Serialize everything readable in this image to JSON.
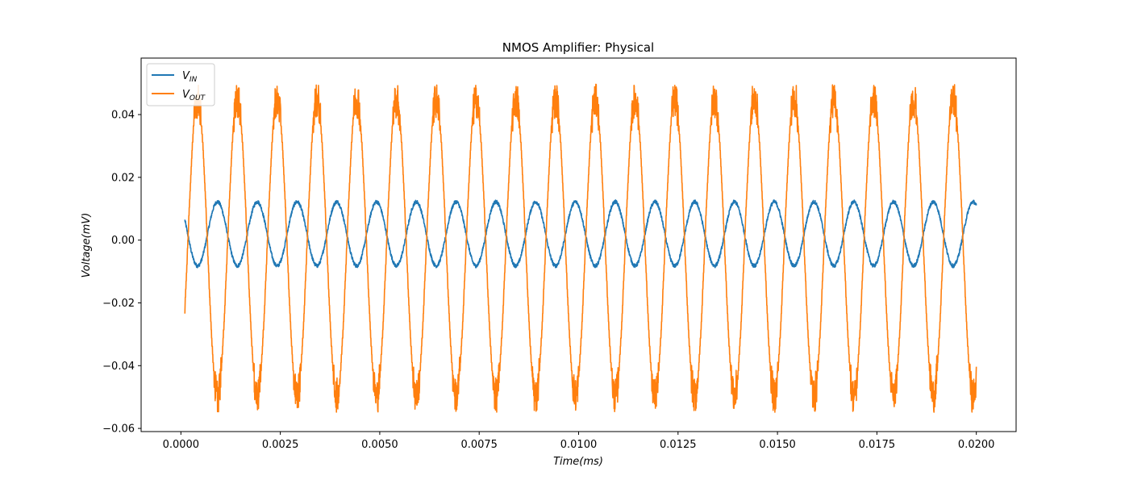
{
  "chart_data": {
    "type": "line",
    "title": "NMOS Amplifier: Physical",
    "xlabel": "Time(ms)",
    "ylabel": "Voltage(mV)",
    "xlim": [
      -0.001,
      0.021
    ],
    "ylim": [
      -0.061,
      0.058
    ],
    "xticks": [
      0.0,
      0.0025,
      0.005,
      0.0075,
      0.01,
      0.0125,
      0.015,
      0.0175,
      0.02
    ],
    "xtick_labels": [
      "0.0000",
      "0.0025",
      "0.0050",
      "0.0075",
      "0.0100",
      "0.0125",
      "0.0150",
      "0.0175",
      "0.0200"
    ],
    "yticks": [
      -0.06,
      -0.04,
      -0.02,
      0.0,
      0.02,
      0.04
    ],
    "ytick_labels": [
      "−0.06",
      "−0.04",
      "−0.02",
      "0.00",
      "0.02",
      "0.04"
    ],
    "grid": false,
    "legend_position": "upper-left",
    "x_range": [
      0.0001,
      0.02
    ],
    "series": [
      {
        "name": "V_IN",
        "label_main": "V",
        "label_sub": "IN",
        "color": "#1f77b4",
        "frequency_per_ms": 1000,
        "offset": 0.002,
        "amplitude": 0.0102,
        "phase_peak_x": 0.00092,
        "min": -0.0085,
        "max": 0.0128
      },
      {
        "name": "V_OUT",
        "label_main": "V",
        "label_sub": "OUT",
        "color": "#ff7f0e",
        "frequency_per_ms": 1000,
        "offset": -0.002,
        "amplitude": 0.0475,
        "phase_trough_x": 0.00092,
        "min": -0.0555,
        "max": 0.052
      }
    ]
  }
}
